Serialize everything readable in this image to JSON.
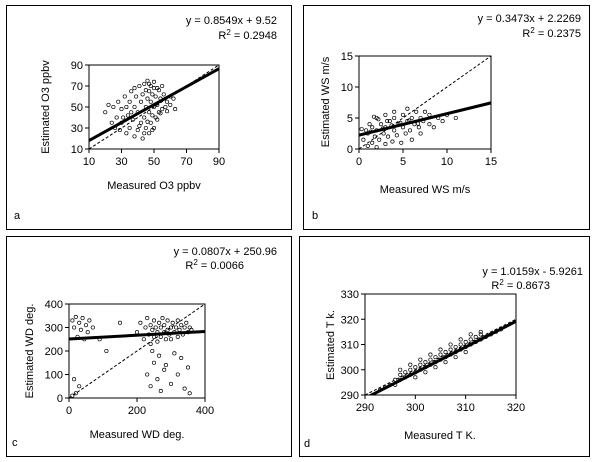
{
  "chart_data": [
    {
      "type": "scatter",
      "panel_label": "a",
      "xlabel": "Measured O3 ppbv",
      "ylabel": "Estimated O3 ppbv",
      "xlim": [
        10,
        90
      ],
      "ylim": [
        10,
        90
      ],
      "xticks": [
        10,
        30,
        50,
        70,
        90
      ],
      "yticks": [
        10,
        30,
        50,
        70,
        90
      ],
      "equation": "y = 0.8549x + 9.52",
      "r2_prefix": "R",
      "r2_value": " = 0.2948",
      "fit": {
        "slope": 0.8549,
        "intercept": 9.52
      },
      "identity_line": true,
      "points": [
        [
          20,
          45
        ],
        [
          22,
          52
        ],
        [
          25,
          50
        ],
        [
          27,
          40
        ],
        [
          28,
          55
        ],
        [
          30,
          35
        ],
        [
          30,
          48
        ],
        [
          32,
          60
        ],
        [
          33,
          25
        ],
        [
          34,
          42
        ],
        [
          35,
          30
        ],
        [
          35,
          55
        ],
        [
          36,
          65
        ],
        [
          37,
          38
        ],
        [
          38,
          22
        ],
        [
          38,
          50
        ],
        [
          39,
          60
        ],
        [
          40,
          28
        ],
        [
          40,
          45
        ],
        [
          41,
          70
        ],
        [
          42,
          35
        ],
        [
          42,
          55
        ],
        [
          43,
          20
        ],
        [
          43,
          62
        ],
        [
          44,
          40
        ],
        [
          44,
          72
        ],
        [
          45,
          30
        ],
        [
          45,
          50
        ],
        [
          46,
          58
        ],
        [
          46,
          75
        ],
        [
          47,
          25
        ],
        [
          47,
          45
        ],
        [
          47,
          65
        ],
        [
          48,
          35
        ],
        [
          48,
          55
        ],
        [
          48,
          70
        ],
        [
          49,
          42
        ],
        [
          49,
          62
        ],
        [
          50,
          30
        ],
        [
          50,
          50
        ],
        [
          50,
          74
        ],
        [
          51,
          40
        ],
        [
          51,
          60
        ],
        [
          52,
          52
        ],
        [
          52,
          68
        ],
        [
          53,
          45
        ],
        [
          54,
          58
        ],
        [
          55,
          48
        ],
        [
          56,
          62
        ],
        [
          57,
          50
        ],
        [
          58,
          55
        ],
        [
          60,
          60
        ],
        [
          62,
          58
        ],
        [
          24,
          35
        ],
        [
          26,
          30
        ],
        [
          29,
          28
        ],
        [
          31,
          40
        ],
        [
          33,
          50
        ],
        [
          36,
          45
        ],
        [
          38,
          68
        ],
        [
          41,
          32
        ],
        [
          44,
          25
        ],
        [
          46,
          36
        ],
        [
          49,
          28
        ],
        [
          52,
          38
        ],
        [
          54,
          44
        ],
        [
          58,
          46
        ],
        [
          60,
          52
        ],
        [
          63,
          48
        ],
        [
          45,
          66
        ],
        [
          47,
          72
        ],
        [
          50,
          68
        ],
        [
          53,
          66
        ],
        [
          55,
          70
        ]
      ]
    },
    {
      "type": "scatter",
      "panel_label": "b",
      "xlabel": "Measured WS m/s",
      "ylabel": "Estimated WS m/s",
      "xlim": [
        0,
        15
      ],
      "ylim": [
        0,
        15
      ],
      "xticks": [
        0,
        5,
        10,
        15
      ],
      "yticks": [
        0,
        5,
        10,
        15
      ],
      "equation": "y = 0.3473x + 2.2269",
      "r2_prefix": "R",
      "r2_value": " = 0.2375",
      "fit": {
        "slope": 0.3473,
        "intercept": 2.2269
      },
      "identity_line": true,
      "points": [
        [
          0.5,
          1.5
        ],
        [
          0.8,
          3.0
        ],
        [
          1,
          0.5
        ],
        [
          1,
          2.5
        ],
        [
          1.2,
          4.0
        ],
        [
          1.5,
          1.0
        ],
        [
          1.5,
          3.5
        ],
        [
          1.8,
          2.0
        ],
        [
          2,
          0.3
        ],
        [
          2,
          3.0
        ],
        [
          2,
          5.0
        ],
        [
          2.3,
          1.5
        ],
        [
          2.5,
          4.0
        ],
        [
          2.8,
          2.5
        ],
        [
          3,
          0.8
        ],
        [
          3,
          3.5
        ],
        [
          3,
          5.5
        ],
        [
          3.3,
          2.0
        ],
        [
          3.5,
          4.5
        ],
        [
          3.8,
          1.2
        ],
        [
          4,
          3.0
        ],
        [
          4,
          5.0
        ],
        [
          4,
          6.0
        ],
        [
          4.3,
          2.2
        ],
        [
          4.5,
          4.0
        ],
        [
          4.8,
          1.0
        ],
        [
          5,
          3.5
        ],
        [
          5,
          5.5
        ],
        [
          5.3,
          2.5
        ],
        [
          5.5,
          4.5
        ],
        [
          5.5,
          6.5
        ],
        [
          5.8,
          3.0
        ],
        [
          6,
          5.0
        ],
        [
          6,
          1.5
        ],
        [
          6.3,
          4.0
        ],
        [
          6.5,
          6.0
        ],
        [
          6.8,
          3.5
        ],
        [
          7,
          5.0
        ],
        [
          7,
          2.5
        ],
        [
          7.3,
          4.5
        ],
        [
          7.5,
          6.0
        ],
        [
          8,
          4.0
        ],
        [
          8,
          5.5
        ],
        [
          8.5,
          3.5
        ],
        [
          9,
          5.0
        ],
        [
          9.5,
          4.5
        ],
        [
          10,
          5.5
        ],
        [
          11,
          5.0
        ],
        [
          0.3,
          3.2
        ],
        [
          1.3,
          2.8
        ],
        [
          2.7,
          3.3
        ],
        [
          3.7,
          3.8
        ],
        [
          4.7,
          4.2
        ],
        [
          5.7,
          4.6
        ],
        [
          6.7,
          4.1
        ],
        [
          2.2,
          4.8
        ],
        [
          3.2,
          4.5
        ],
        [
          1.7,
          5.2
        ]
      ]
    },
    {
      "type": "scatter",
      "panel_label": "c",
      "xlabel": "Measured WD deg.",
      "ylabel": "Estimated WD deg.",
      "xlim": [
        0,
        400
      ],
      "ylim": [
        0,
        400
      ],
      "xticks": [
        0,
        200,
        400
      ],
      "yticks": [
        0,
        100,
        200,
        300,
        400
      ],
      "equation": "y = 0.0807x + 250.96",
      "r2_prefix": "R",
      "r2_value": " = 0.0066",
      "fit": {
        "slope": 0.0807,
        "intercept": 250.96
      },
      "identity_line": true,
      "points": [
        [
          10,
          330
        ],
        [
          15,
          300
        ],
        [
          20,
          345
        ],
        [
          25,
          260
        ],
        [
          30,
          320
        ],
        [
          35,
          290
        ],
        [
          40,
          340
        ],
        [
          45,
          250
        ],
        [
          50,
          310
        ],
        [
          55,
          280
        ],
        [
          60,
          330
        ],
        [
          70,
          300
        ],
        [
          90,
          250
        ],
        [
          110,
          200
        ],
        [
          150,
          320
        ],
        [
          200,
          280
        ],
        [
          210,
          320
        ],
        [
          220,
          250
        ],
        [
          225,
          300
        ],
        [
          230,
          340
        ],
        [
          235,
          270
        ],
        [
          240,
          310
        ],
        [
          240,
          230
        ],
        [
          245,
          290
        ],
        [
          250,
          260
        ],
        [
          250,
          330
        ],
        [
          255,
          300
        ],
        [
          260,
          240
        ],
        [
          260,
          280
        ],
        [
          265,
          320
        ],
        [
          270,
          260
        ],
        [
          270,
          300
        ],
        [
          275,
          340
        ],
        [
          280,
          280
        ],
        [
          280,
          310
        ],
        [
          285,
          250
        ],
        [
          290,
          290
        ],
        [
          290,
          330
        ],
        [
          295,
          270
        ],
        [
          300,
          300
        ],
        [
          300,
          250
        ],
        [
          305,
          320
        ],
        [
          310,
          280
        ],
        [
          315,
          300
        ],
        [
          320,
          260
        ],
        [
          320,
          330
        ],
        [
          325,
          290
        ],
        [
          330,
          310
        ],
        [
          335,
          270
        ],
        [
          340,
          300
        ],
        [
          345,
          320
        ],
        [
          350,
          280
        ],
        [
          355,
          300
        ],
        [
          360,
          290
        ],
        [
          230,
          100
        ],
        [
          240,
          50
        ],
        [
          250,
          150
        ],
        [
          260,
          80
        ],
        [
          270,
          30
        ],
        [
          280,
          120
        ],
        [
          300,
          60
        ],
        [
          320,
          100
        ],
        [
          340,
          40
        ],
        [
          355,
          20
        ],
        [
          20,
          20
        ],
        [
          30,
          50
        ],
        [
          15,
          80
        ],
        [
          10,
          10
        ],
        [
          245,
          200
        ],
        [
          265,
          180
        ],
        [
          285,
          140
        ],
        [
          310,
          190
        ],
        [
          330,
          170
        ],
        [
          350,
          130
        ]
      ]
    },
    {
      "type": "scatter",
      "panel_label": "d",
      "xlabel": "Measured T K.",
      "ylabel": "Estimated T k.",
      "xlim": [
        290,
        320
      ],
      "ylim": [
        290,
        330
      ],
      "xticks": [
        290,
        300,
        310,
        320
      ],
      "yticks": [
        290,
        300,
        310,
        320,
        330
      ],
      "equation": "y = 1.0159x - 5.9261",
      "r2_prefix": "R",
      "r2_value": " = 0.8673",
      "fit": {
        "slope": 1.0159,
        "intercept": -5.9261
      },
      "identity_line": true,
      "points": [
        [
          293,
          292
        ],
        [
          294,
          293
        ],
        [
          295,
          294
        ],
        [
          296,
          296
        ],
        [
          296,
          294
        ],
        [
          297,
          296
        ],
        [
          297,
          298
        ],
        [
          298,
          297
        ],
        [
          298,
          299
        ],
        [
          299,
          298
        ],
        [
          299,
          300
        ],
        [
          300,
          299
        ],
        [
          300,
          301
        ],
        [
          300,
          297
        ],
        [
          301,
          300
        ],
        [
          301,
          302
        ],
        [
          302,
          301
        ],
        [
          302,
          303
        ],
        [
          302,
          299
        ],
        [
          303,
          302
        ],
        [
          303,
          304
        ],
        [
          304,
          303
        ],
        [
          304,
          305
        ],
        [
          304,
          301
        ],
        [
          305,
          304
        ],
        [
          305,
          306
        ],
        [
          306,
          305
        ],
        [
          306,
          307
        ],
        [
          306,
          303
        ],
        [
          307,
          306
        ],
        [
          307,
          308
        ],
        [
          308,
          307
        ],
        [
          308,
          309
        ],
        [
          308,
          305
        ],
        [
          309,
          308
        ],
        [
          309,
          310
        ],
        [
          310,
          309
        ],
        [
          310,
          311
        ],
        [
          310,
          307
        ],
        [
          311,
          310
        ],
        [
          311,
          312
        ],
        [
          312,
          311
        ],
        [
          312,
          313
        ],
        [
          313,
          312
        ],
        [
          313,
          314
        ],
        [
          314,
          313
        ],
        [
          315,
          314
        ],
        [
          316,
          315
        ],
        [
          317,
          316
        ],
        [
          303,
          306
        ],
        [
          305,
          308
        ],
        [
          307,
          310
        ],
        [
          309,
          312
        ],
        [
          301,
          304
        ],
        [
          299,
          302
        ],
        [
          297,
          300
        ],
        [
          311,
          314
        ],
        [
          313,
          315
        ]
      ]
    }
  ]
}
